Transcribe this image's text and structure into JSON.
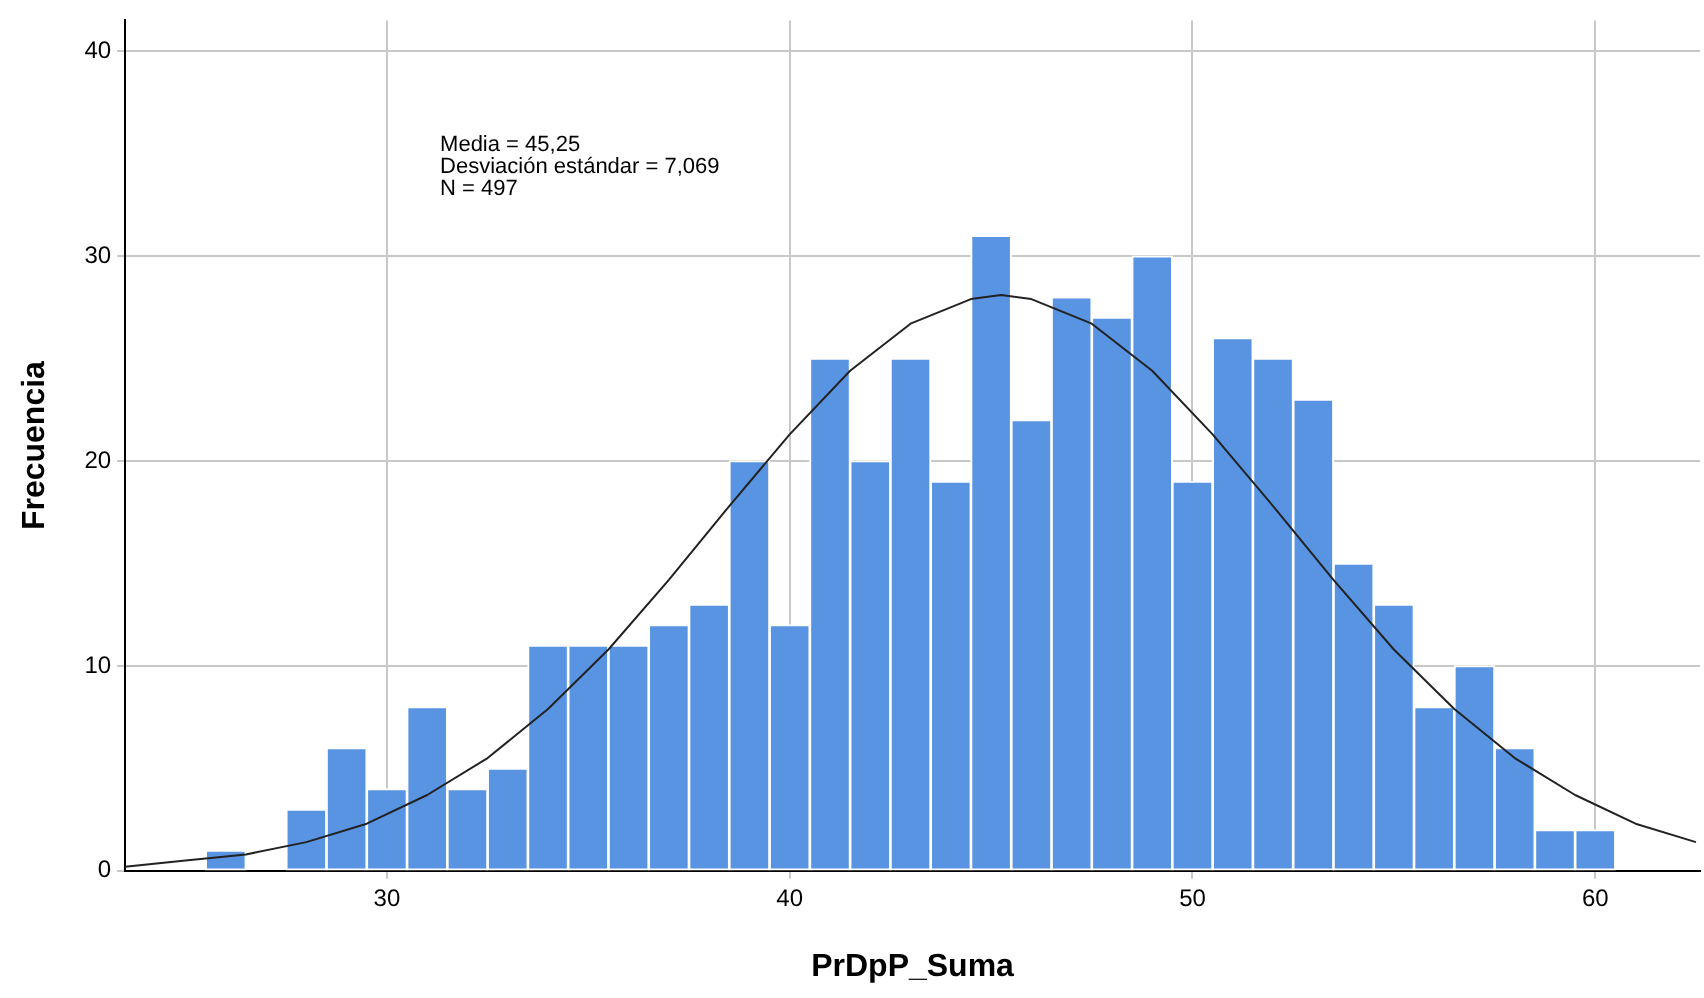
{
  "chart_data": {
    "type": "histogram",
    "xlabel": "PrDpP_Suma",
    "ylabel": "Frecuencia",
    "bins": [
      25.5,
      26.5,
      27.5,
      28.5,
      29.5,
      30.5,
      31.5,
      32.5,
      33.5,
      34.5,
      35.5,
      36.5,
      37.5,
      38.5,
      39.5,
      40.5,
      41.5,
      42.5,
      43.5,
      44.5,
      45.5,
      46.5,
      47.5,
      48.5,
      49.5,
      50.5,
      51.5,
      52.5,
      53.5,
      54.5,
      55.5,
      56.5,
      57.5,
      58.5,
      59.5,
      60.5
    ],
    "values": [
      1,
      0,
      3,
      6,
      4,
      8,
      4,
      5,
      11,
      11,
      11,
      12,
      13,
      20,
      12,
      25,
      20,
      25,
      19,
      31,
      22,
      28,
      27,
      30,
      19,
      26,
      25,
      23,
      15,
      13,
      8,
      10,
      6,
      2,
      2
    ],
    "color": "#5894e2",
    "series": [
      {
        "type": "line",
        "color": "#222222",
        "x": [
          23.5,
          25,
          26.5,
          28,
          29.5,
          31,
          32.5,
          34,
          35.5,
          37,
          38.5,
          40,
          41.5,
          43,
          44.5,
          45.25,
          46,
          47.5,
          49,
          50.5,
          52,
          53.5,
          55,
          56.5,
          58,
          59.5,
          61,
          62.5
        ],
        "values": [
          0.2,
          0.5,
          0.8,
          1.4,
          2.3,
          3.7,
          5.5,
          7.9,
          10.8,
          14.2,
          17.8,
          21.3,
          24.4,
          26.7,
          27.9,
          28.1,
          27.9,
          26.7,
          24.4,
          21.3,
          17.8,
          14.2,
          10.8,
          7.9,
          5.5,
          3.7,
          2.3,
          1.4
        ]
      }
    ],
    "marker": "none",
    "line_style": "solid",
    "xlim": [
      23.5,
      62.6
    ],
    "xticks": [
      30,
      40,
      50,
      60
    ],
    "ylim": [
      0,
      41.5
    ],
    "yticks": [
      0,
      10,
      20,
      30,
      40
    ],
    "grid": true,
    "legend": false,
    "annotations": [
      "Media = 45,25",
      "Desviación estándar = 7,069",
      "N = 497"
    ]
  }
}
